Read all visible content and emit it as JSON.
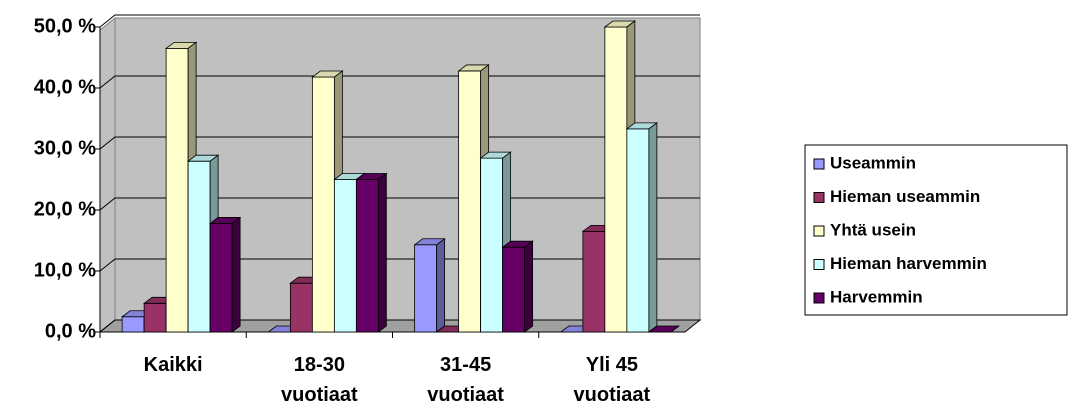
{
  "chart_data": {
    "type": "bar3d",
    "categories": [
      "Kaikki",
      "18-30\nvuotiaat",
      "31-45\nvuotiaat",
      "Yli 45\nvuotiaat"
    ],
    "series": [
      {
        "name": "Useammin",
        "color": "#9999ff",
        "values": [
          2.5,
          0,
          14.3,
          0
        ]
      },
      {
        "name": "Hieman useammin",
        "color": "#993366",
        "values": [
          4.7,
          8,
          0,
          16.5
        ]
      },
      {
        "name": "Yhtä usein",
        "color": "#ffffcc",
        "values": [
          46.5,
          41.8,
          42.8,
          50
        ]
      },
      {
        "name": "Hieman harvemmin",
        "color": "#ccffff",
        "values": [
          28,
          25,
          28.5,
          33.3
        ]
      },
      {
        "name": "Harvemmin",
        "color": "#660066",
        "values": [
          17.8,
          25,
          13.9,
          0
        ]
      }
    ],
    "ylim": [
      0,
      50
    ],
    "yticks": [
      {
        "value": 0,
        "label": "0,0 %"
      },
      {
        "value": 10,
        "label": "10,0 %"
      },
      {
        "value": 20,
        "label": "20,0 %"
      },
      {
        "value": 30,
        "label": "30,0 %"
      },
      {
        "value": 40,
        "label": "40,0 %"
      },
      {
        "value": 50,
        "label": "50,0 %"
      }
    ],
    "grid": true,
    "legend": "right"
  }
}
